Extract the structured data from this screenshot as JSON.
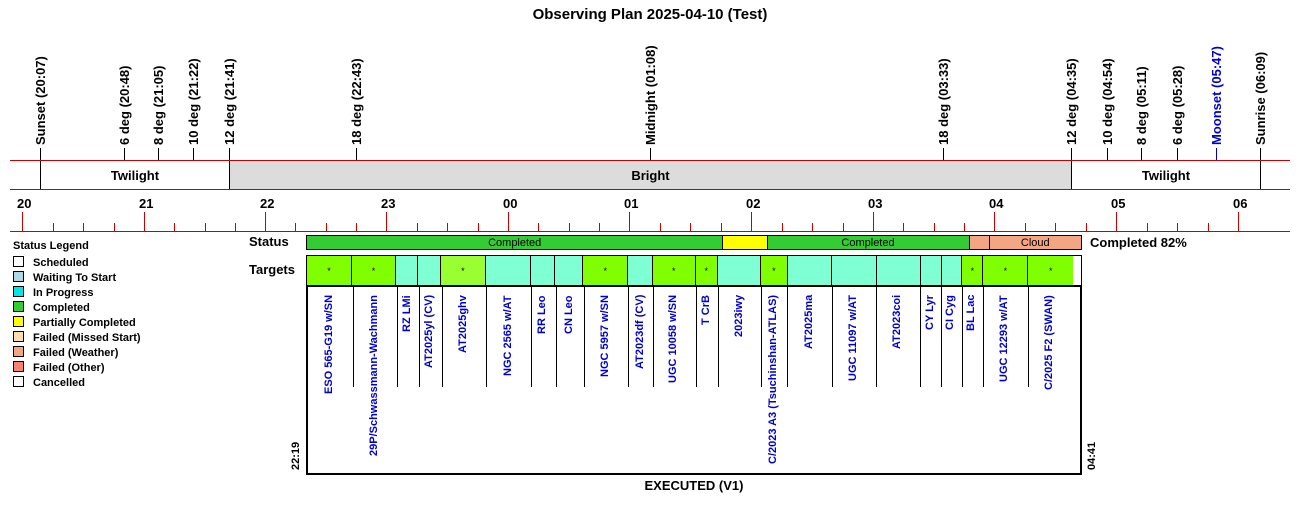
{
  "title": "Observing Plan 2025-04-10 (Test)",
  "events": [
    {
      "label": "Sunset (20:07)",
      "color": "#000000"
    },
    {
      "label": "6 deg (20:48)",
      "color": "#000000"
    },
    {
      "label": "8 deg (21:05)",
      "color": "#000000"
    },
    {
      "label": "10 deg (21:22)",
      "color": "#000000"
    },
    {
      "label": "12 deg (21:41)",
      "color": "#000000"
    },
    {
      "label": "18 deg (22:43)",
      "color": "#000000"
    },
    {
      "label": "Midnight (01:08)",
      "color": "#000000"
    },
    {
      "label": "18 deg (03:33)",
      "color": "#000000"
    },
    {
      "label": "12 deg (04:35)",
      "color": "#000000"
    },
    {
      "label": "10 deg (04:54)",
      "color": "#000000"
    },
    {
      "label": "8 deg (05:11)",
      "color": "#000000"
    },
    {
      "label": "6 deg (05:28)",
      "color": "#000000"
    },
    {
      "label": "Moonset (05:47)",
      "color": "#0000cc"
    },
    {
      "label": "Sunrise (06:09)",
      "color": "#000000"
    }
  ],
  "bands": {
    "twilight_left": "Twilight",
    "bright": "Bright",
    "twilight_right": "Twilight"
  },
  "hours": [
    "20",
    "21",
    "22",
    "23",
    "00",
    "01",
    "02",
    "03",
    "04",
    "05",
    "06"
  ],
  "legend": {
    "title": "Status Legend",
    "items": [
      {
        "label": "Scheduled",
        "color": "#ffffff"
      },
      {
        "label": "Waiting To Start",
        "color": "#add8e6"
      },
      {
        "label": "In Progress",
        "color": "#00e5e5"
      },
      {
        "label": "Completed",
        "color": "#33cc33"
      },
      {
        "label": "Partially Completed",
        "color": "#ffff00"
      },
      {
        "label": "Failed (Missed Start)",
        "color": "#ffdead"
      },
      {
        "label": "Failed (Weather)",
        "color": "#f4a582"
      },
      {
        "label": "Failed (Other)",
        "color": "#fa8072"
      },
      {
        "label": "Cancelled",
        "color": "#ffffff"
      }
    ]
  },
  "row_labels": {
    "status": "Status",
    "targets": "Targets"
  },
  "status_segments": [
    {
      "label": "Completed",
      "color": "#33cc33",
      "fraction": 0.538
    },
    {
      "label": "",
      "color": "#ffff00",
      "fraction": 0.057
    },
    {
      "label": "Completed",
      "color": "#33cc33",
      "fraction": 0.261
    },
    {
      "label": "",
      "color": "#f4a582",
      "fraction": 0.026
    },
    {
      "label": "Cloud",
      "color": "#f4a582",
      "fraction": 0.118
    }
  ],
  "completed_pct": "Completed 82%",
  "targets": [
    {
      "name": "ESO 565-G19 w/SN",
      "color": "#80ff00",
      "mark": "*",
      "fraction": 0.058
    },
    {
      "name": "29P/Schwassmann-Wachmann",
      "color": "#80ff00",
      "mark": "*",
      "fraction": 0.057
    },
    {
      "name": "RZ LMi",
      "color": "#7fffd4",
      "mark": "",
      "fraction": 0.029
    },
    {
      "name": "AT2025yl (CV)",
      "color": "#7fffd4",
      "mark": "",
      "fraction": 0.029
    },
    {
      "name": "AT2025ghv",
      "color": "#99ff33",
      "mark": "*",
      "fraction": 0.058
    },
    {
      "name": "NGC 2565 w/AT",
      "color": "#7fffd4",
      "mark": "",
      "fraction": 0.058
    },
    {
      "name": "RR Leo",
      "color": "#7fffd4",
      "mark": "",
      "fraction": 0.032
    },
    {
      "name": "CN Leo",
      "color": "#7fffd4",
      "mark": "",
      "fraction": 0.036
    },
    {
      "name": "NGC 5957 w/SN",
      "color": "#80ff00",
      "mark": "*",
      "fraction": 0.058
    },
    {
      "name": "AT2023df (CV)",
      "color": "#7fffd4",
      "mark": "",
      "fraction": 0.032
    },
    {
      "name": "UGC 10058 w/SN",
      "color": "#80ff00",
      "mark": "*",
      "fraction": 0.055
    },
    {
      "name": "T CrB",
      "color": "#80ff00",
      "mark": "*",
      "fraction": 0.029
    },
    {
      "name": "2023iwy",
      "color": "#7fffd4",
      "mark": "",
      "fraction": 0.056
    },
    {
      "name": "C/2023 A3 (Tsuchinshan-ATLAS)",
      "color": "#80ff00",
      "mark": "*",
      "fraction": 0.034
    },
    {
      "name": "AT2025ma",
      "color": "#7fffd4",
      "mark": "",
      "fraction": 0.058
    },
    {
      "name": "UGC 11097 w/AT",
      "color": "#7fffd4",
      "mark": "",
      "fraction": 0.057
    },
    {
      "name": "AT2023coi",
      "color": "#7fffd4",
      "mark": "",
      "fraction": 0.057
    },
    {
      "name": "CY Lyr",
      "color": "#7fffd4",
      "mark": "",
      "fraction": 0.027
    },
    {
      "name": "CI Cyg",
      "color": "#7fffd4",
      "mark": "",
      "fraction": 0.027
    },
    {
      "name": "BL Lac",
      "color": "#80ff00",
      "mark": "*",
      "fraction": 0.027
    },
    {
      "name": "UGC 12293 w/AT",
      "color": "#80ff00",
      "mark": "*",
      "fraction": 0.058
    },
    {
      "name": "C/2025 F2 (SWAN)",
      "color": "#80ff00",
      "mark": "*",
      "fraction": 0.058
    }
  ],
  "start_time": "22:19",
  "end_time": "04:41",
  "footer": "EXECUTED (V1)"
}
